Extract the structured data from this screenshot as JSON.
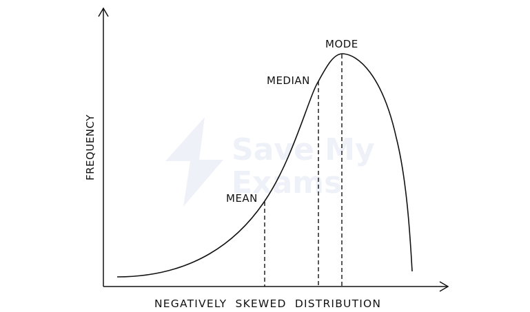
{
  "diagram": {
    "x_axis_label": "NEGATIVELY  SKEWED  DISTRIBUTION",
    "y_axis_label": "FREQUENCY",
    "markers": {
      "mean": "MEAN",
      "median": "MEDIAN",
      "mode": "MODE"
    },
    "watermark": {
      "line1": "Save My",
      "line2": "Exams"
    },
    "colors": {
      "ink": "#111111",
      "watermark": "#eef1f8"
    }
  }
}
